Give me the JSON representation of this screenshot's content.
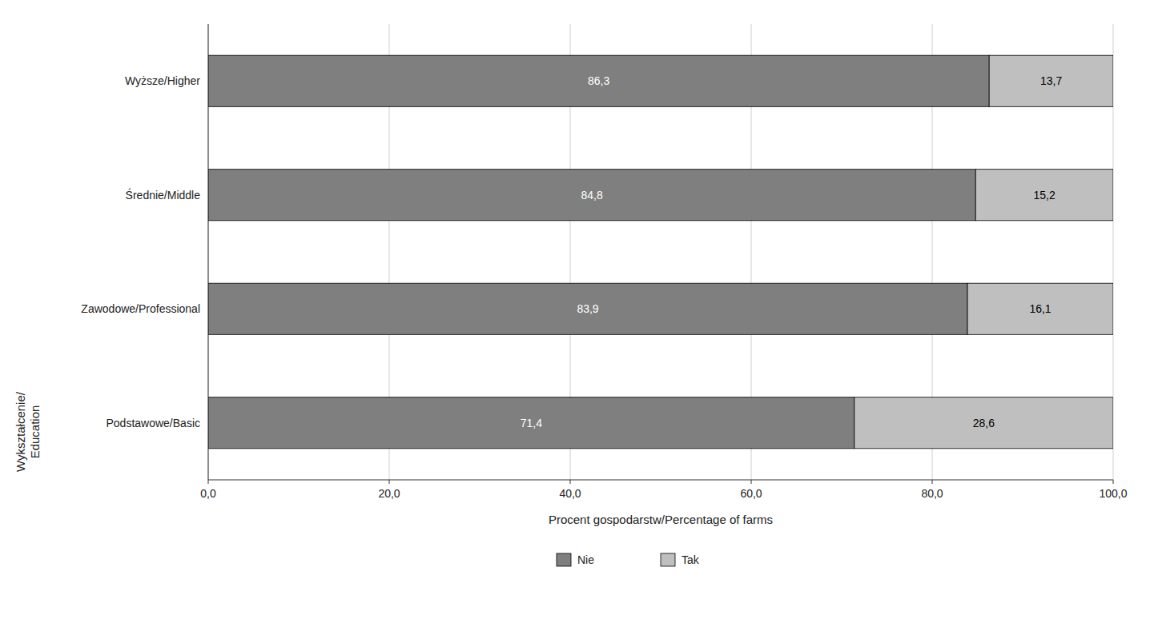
{
  "chart_data": {
    "type": "bar",
    "orientation": "horizontal",
    "stacked": true,
    "categories": [
      "Podstawowe/Basic",
      "Zawodowe/Professional",
      "Średnie/Middle",
      "Wyższe/Higher"
    ],
    "series": [
      {
        "name": "Nie",
        "color": "#7f7f7f",
        "values": [
          71.4,
          83.9,
          84.8,
          86.3
        ],
        "value_labels": [
          "71,4",
          "83,9",
          "84,8",
          "86,3"
        ]
      },
      {
        "name": "Tak",
        "color": "#bfbfbf",
        "values": [
          28.6,
          16.1,
          15.2,
          13.7
        ],
        "value_labels": [
          "28,6",
          "16,1",
          "15,2",
          "13,7"
        ]
      }
    ],
    "xlabel": "Procent gospodarstw/Percentage of farms",
    "ylabel": "Wykształcenie/\nEducation",
    "xlim": [
      0,
      100
    ],
    "xticks": [
      {
        "value": 0.0,
        "label": "0,0"
      },
      {
        "value": 20.0,
        "label": "20,0"
      },
      {
        "value": 40.0,
        "label": "40,0"
      },
      {
        "value": 60.0,
        "label": "60,0"
      },
      {
        "value": 80.0,
        "label": "80,0"
      },
      {
        "value": 100.0,
        "label": "100,0"
      }
    ],
    "grid": true,
    "legend": "bottom",
    "data_labels": true
  }
}
